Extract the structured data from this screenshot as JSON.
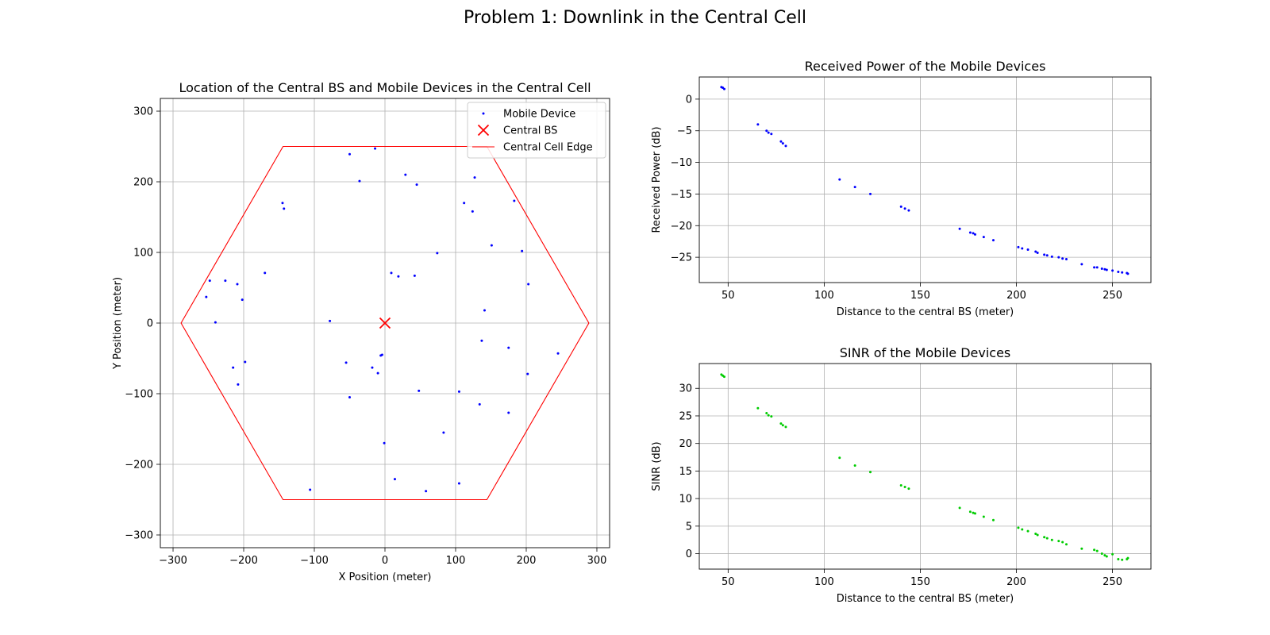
{
  "figure_title": "Problem 1: Downlink in the Central Cell",
  "chart_data": [
    {
      "type": "scatter",
      "title": "Location of the Central BS and Mobile Devices in the Central Cell",
      "xlabel": "X Position (meter)",
      "ylabel": "Y Position (meter)",
      "xlim": [
        -318,
        318
      ],
      "ylim": [
        -318,
        318
      ],
      "xticks": [
        -300,
        -200,
        -100,
        0,
        100,
        200,
        300
      ],
      "yticks": [
        -300,
        -200,
        -100,
        0,
        100,
        200,
        300
      ],
      "grid": true,
      "legend": {
        "placement": "upper-right",
        "entries": [
          {
            "label": "Mobile Device",
            "marker": "dot",
            "color": "#0000ff"
          },
          {
            "label": "Central BS",
            "marker": "x",
            "color": "#ff0000"
          },
          {
            "label": "Central Cell Edge",
            "marker": "line",
            "color": "#ff0000"
          }
        ]
      },
      "series": [
        {
          "name": "Mobile Device",
          "color": "#0000ff",
          "points": [
            [
              -50,
              239
            ],
            [
              -14,
              247
            ],
            [
              -36,
              201
            ],
            [
              29,
              210
            ],
            [
              45,
              196
            ],
            [
              127,
              206
            ],
            [
              112,
              170
            ],
            [
              124,
              158
            ],
            [
              183,
              173
            ],
            [
              -145,
              170
            ],
            [
              -143,
              162
            ],
            [
              151,
              110
            ],
            [
              194,
              102
            ],
            [
              74,
              99
            ],
            [
              -253,
              37
            ],
            [
              -248,
              60
            ],
            [
              -226,
              60
            ],
            [
              -209,
              55
            ],
            [
              -202,
              33
            ],
            [
              -170,
              71
            ],
            [
              9,
              71
            ],
            [
              19,
              66
            ],
            [
              42,
              67
            ],
            [
              203,
              55
            ],
            [
              -240,
              1
            ],
            [
              -78,
              3
            ],
            [
              141,
              18
            ],
            [
              245,
              -43
            ],
            [
              137,
              -25
            ],
            [
              175,
              -35
            ],
            [
              -215,
              -63
            ],
            [
              -198,
              -55
            ],
            [
              -208,
              -87
            ],
            [
              -55,
              -56
            ],
            [
              -6,
              -46
            ],
            [
              -4,
              -45
            ],
            [
              -18,
              -63
            ],
            [
              -10,
              -71
            ],
            [
              202,
              -72
            ],
            [
              48,
              -96
            ],
            [
              105,
              -97
            ],
            [
              -50,
              -105
            ],
            [
              134,
              -115
            ],
            [
              175,
              -127
            ],
            [
              83,
              -155
            ],
            [
              -1,
              -170
            ],
            [
              14,
              -221
            ],
            [
              105,
              -227
            ],
            [
              -106,
              -236
            ],
            [
              58,
              -238
            ]
          ]
        },
        {
          "name": "Central BS",
          "color": "#ff0000",
          "points": [
            [
              0,
              0
            ]
          ]
        }
      ],
      "cell_edge": {
        "name": "Central Cell Edge",
        "color": "#ff0000",
        "points": [
          [
            -144.3,
            250
          ],
          [
            144.3,
            250
          ],
          [
            288.7,
            0
          ],
          [
            144.3,
            -250
          ],
          [
            -144.3,
            -250
          ],
          [
            -288.7,
            0
          ]
        ]
      }
    },
    {
      "type": "scatter",
      "title": "Received Power of the Mobile Devices",
      "xlabel": "Distance to the central BS (meter)",
      "ylabel": "Received Power (dB)",
      "xlim": [
        35,
        270
      ],
      "ylim": [
        -29,
        3.5
      ],
      "xticks": [
        50,
        100,
        150,
        200,
        250
      ],
      "yticks": [
        0,
        -5,
        -10,
        -15,
        -20,
        -25
      ],
      "grid": true,
      "color": "#0000ff",
      "points": [
        [
          46.5,
          1.9
        ],
        [
          47.2,
          1.8
        ],
        [
          48,
          1.6
        ],
        [
          65.5,
          -4
        ],
        [
          70,
          -5
        ],
        [
          71,
          -5.3
        ],
        [
          72.5,
          -5.5
        ],
        [
          77.5,
          -6.7
        ],
        [
          78.5,
          -7
        ],
        [
          80,
          -7.4
        ],
        [
          108,
          -12.7
        ],
        [
          116,
          -13.9
        ],
        [
          124,
          -15
        ],
        [
          140,
          -17
        ],
        [
          142,
          -17.3
        ],
        [
          144,
          -17.6
        ],
        [
          170.5,
          -20.5
        ],
        [
          176,
          -21.1
        ],
        [
          177.5,
          -21.2
        ],
        [
          178.5,
          -21.4
        ],
        [
          183,
          -21.8
        ],
        [
          188,
          -22.3
        ],
        [
          201,
          -23.4
        ],
        [
          203,
          -23.6
        ],
        [
          206,
          -23.8
        ],
        [
          210,
          -24.1
        ],
        [
          211,
          -24.3
        ],
        [
          214.5,
          -24.6
        ],
        [
          216,
          -24.7
        ],
        [
          218.5,
          -24.9
        ],
        [
          222,
          -25
        ],
        [
          224,
          -25.2
        ],
        [
          226,
          -25.3
        ],
        [
          234,
          -26.1
        ],
        [
          240.5,
          -26.6
        ],
        [
          242,
          -26.6
        ],
        [
          244.5,
          -26.8
        ],
        [
          246,
          -26.9
        ],
        [
          247,
          -27
        ],
        [
          250,
          -27.1
        ],
        [
          253,
          -27.3
        ],
        [
          255,
          -27.4
        ],
        [
          257.5,
          -27.5
        ],
        [
          258,
          -27.6
        ]
      ]
    },
    {
      "type": "scatter",
      "title": "SINR of the Mobile Devices",
      "xlabel": "Distance to the central BS (meter)",
      "ylabel": "SINR (dB)",
      "xlim": [
        35,
        270
      ],
      "ylim": [
        -2.8,
        34.5
      ],
      "xticks": [
        50,
        100,
        150,
        200,
        250
      ],
      "yticks": [
        0,
        5,
        10,
        15,
        20,
        25,
        30
      ],
      "grid": true,
      "color": "#00cc00",
      "points": [
        [
          46.5,
          32.5
        ],
        [
          47.2,
          32.3
        ],
        [
          48,
          32.1
        ],
        [
          65.5,
          26.4
        ],
        [
          70,
          25.5
        ],
        [
          71,
          25.1
        ],
        [
          72.5,
          24.9
        ],
        [
          77.5,
          23.6
        ],
        [
          78.5,
          23.3
        ],
        [
          80,
          23
        ],
        [
          108,
          17.4
        ],
        [
          116,
          16
        ],
        [
          124,
          14.8
        ],
        [
          140,
          12.4
        ],
        [
          142,
          12.1
        ],
        [
          144,
          11.8
        ],
        [
          170.5,
          8.3
        ],
        [
          176,
          7.6
        ],
        [
          177.5,
          7.4
        ],
        [
          178.5,
          7.3
        ],
        [
          183,
          6.7
        ],
        [
          188,
          6.1
        ],
        [
          201,
          4.7
        ],
        [
          203,
          4.4
        ],
        [
          206,
          4.1
        ],
        [
          210,
          3.6
        ],
        [
          211,
          3.4
        ],
        [
          214.5,
          3
        ],
        [
          216,
          2.8
        ],
        [
          218.5,
          2.5
        ],
        [
          222,
          2.3
        ],
        [
          224,
          2.1
        ],
        [
          226,
          1.7
        ],
        [
          234,
          0.9
        ],
        [
          240.5,
          0.7
        ],
        [
          242,
          0.5
        ],
        [
          244.5,
          0
        ],
        [
          246,
          -0.3
        ],
        [
          247,
          -0.5
        ],
        [
          250,
          -0.1
        ],
        [
          253,
          -1
        ],
        [
          255,
          -1.1
        ],
        [
          257.5,
          -1
        ],
        [
          258,
          -0.8
        ]
      ]
    }
  ]
}
